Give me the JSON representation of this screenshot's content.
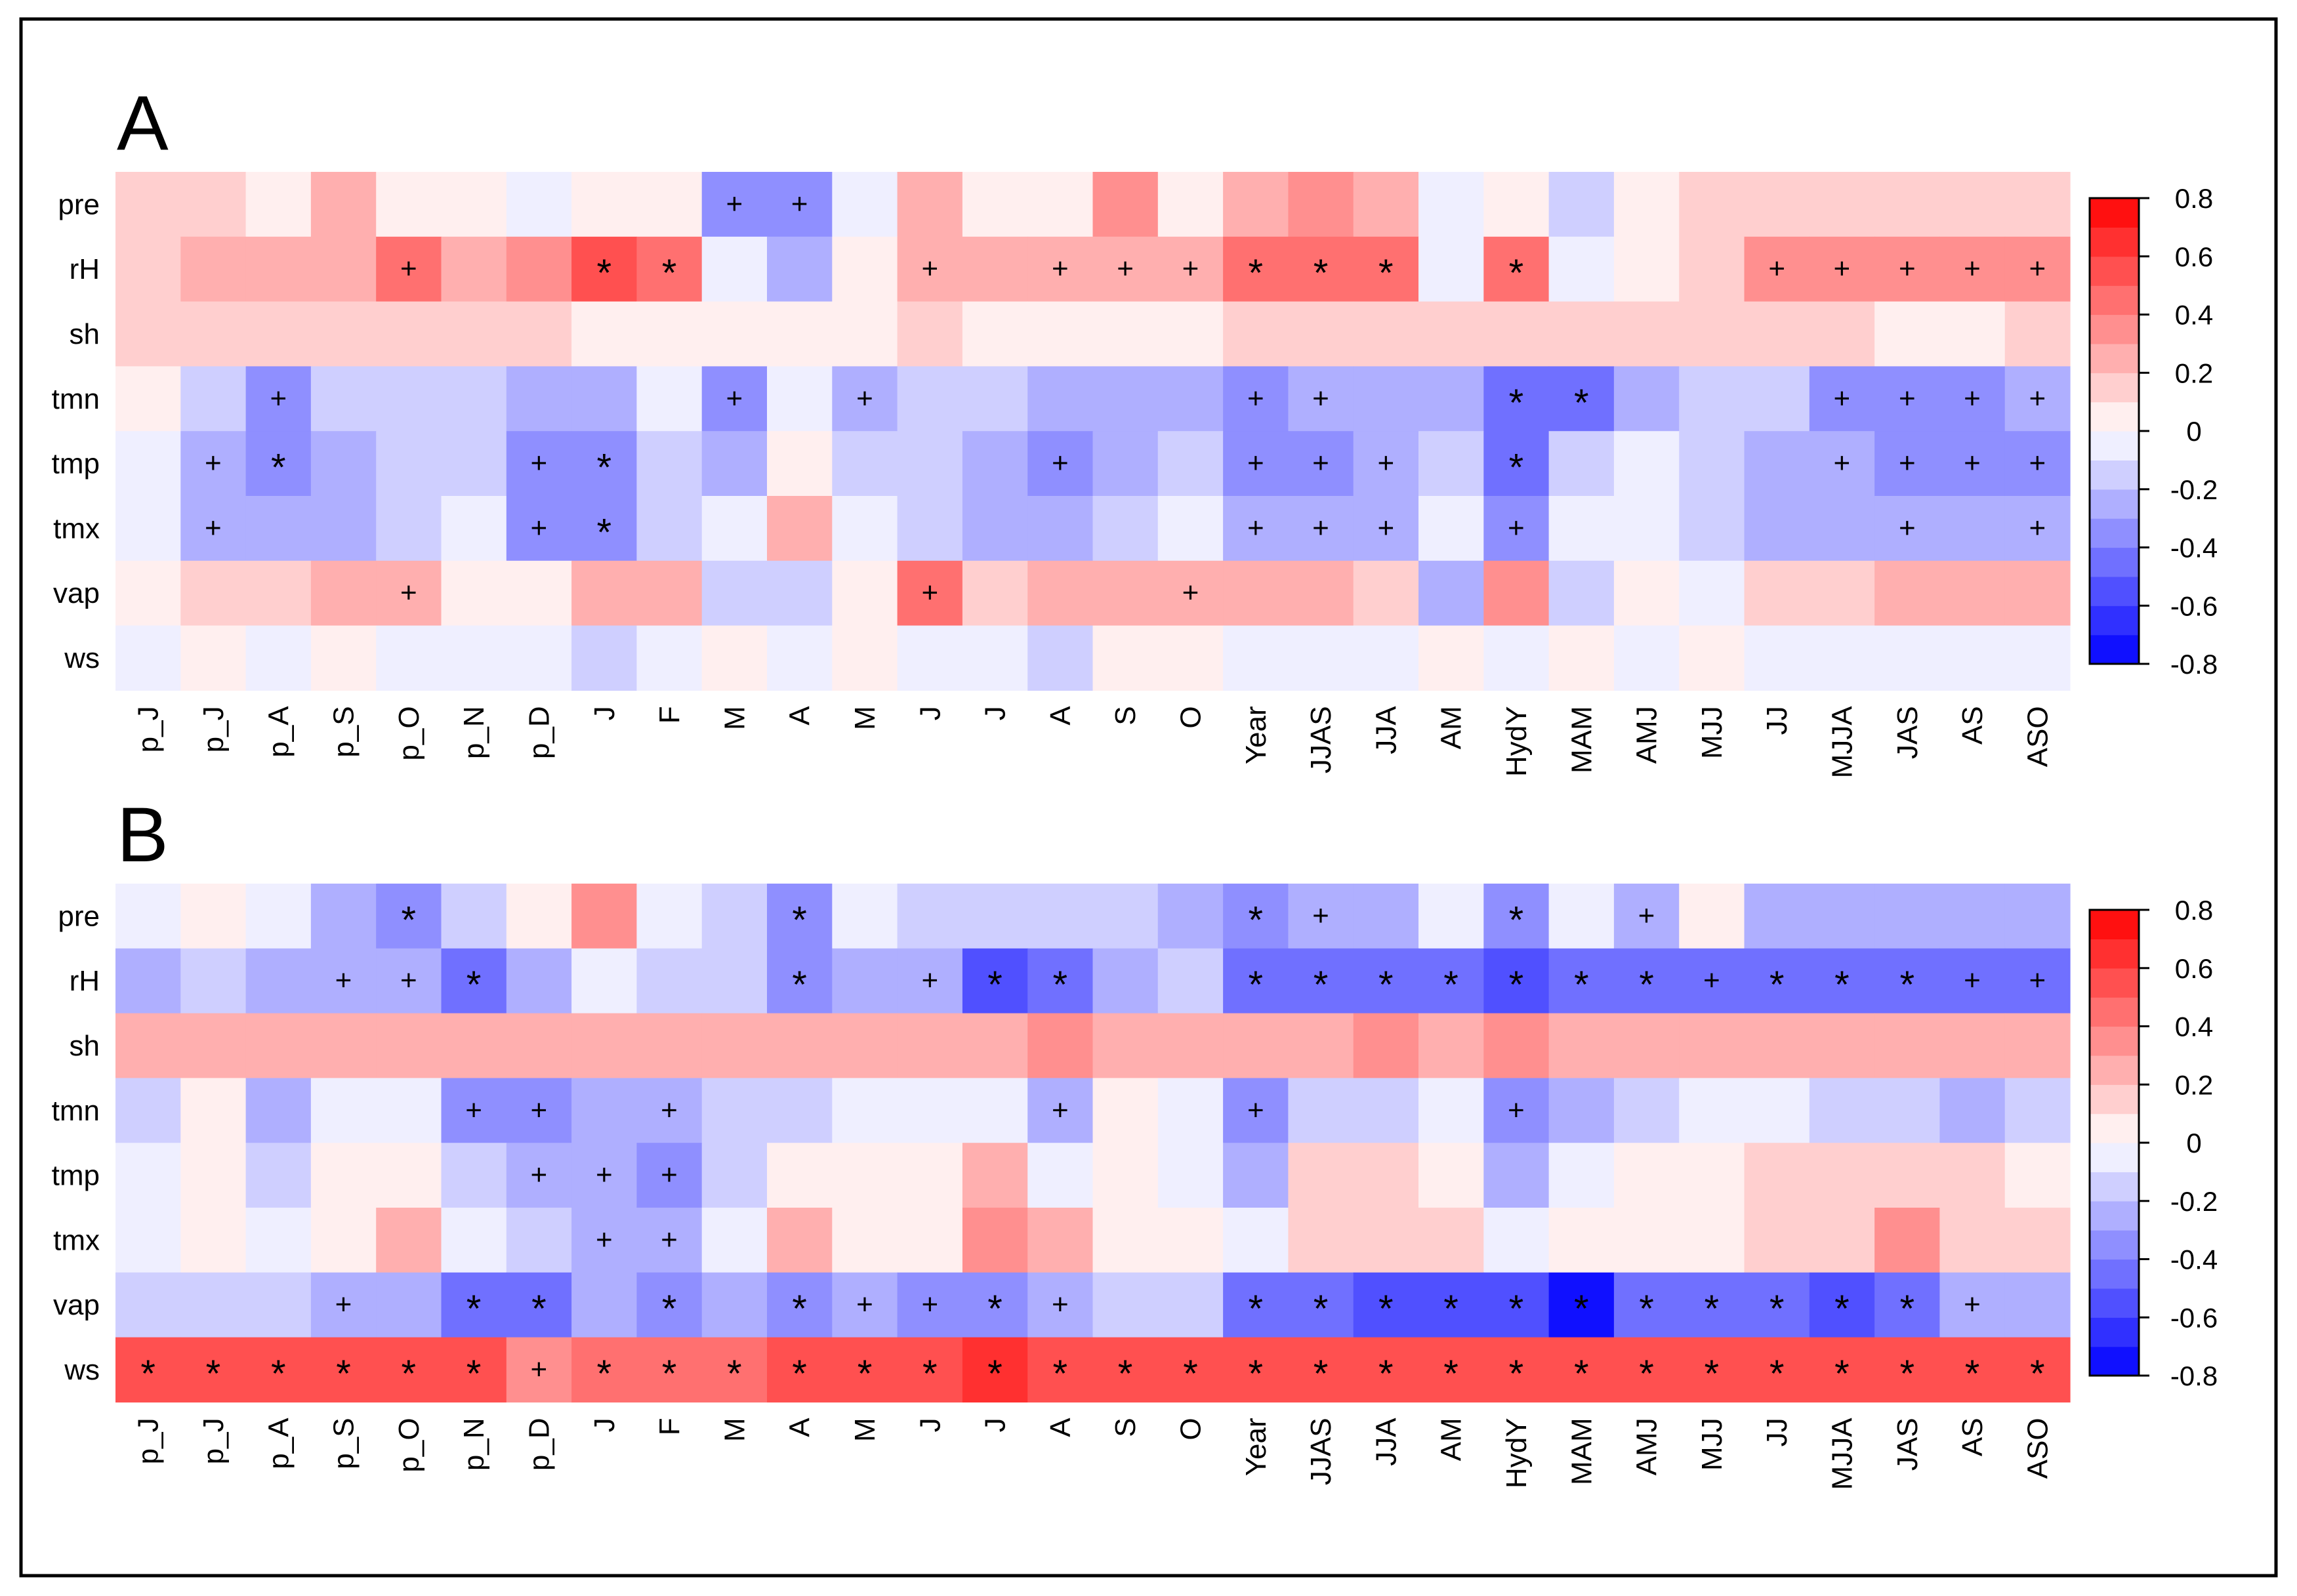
{
  "chart_data": [
    {
      "type": "heatmap",
      "panel_label": "A",
      "rows": [
        "pre",
        "rH",
        "sh",
        "tmn",
        "tmp",
        "tmx",
        "vap",
        "ws"
      ],
      "columns": [
        "p_J",
        "p_J",
        "p_A",
        "p_S",
        "p_O",
        "p_N",
        "p_D",
        "J",
        "F",
        "M",
        "A",
        "M",
        "J",
        "J",
        "A",
        "S",
        "O",
        "Year",
        "JJAS",
        "JJA",
        "AM",
        "HydY",
        "MAM",
        "AMJ",
        "MJJ",
        "JJ",
        "MJJA",
        "JAS",
        "AS",
        "ASO"
      ],
      "values": [
        [
          0.15,
          0.15,
          0.05,
          0.2,
          0.05,
          0.05,
          -0.05,
          0.05,
          0.05,
          -0.4,
          -0.4,
          -0.05,
          0.2,
          0.05,
          0.05,
          0.3,
          0.05,
          0.25,
          0.3,
          0.2,
          -0.05,
          0.05,
          -0.15,
          0.05,
          0.15,
          0.15,
          0.15,
          0.15,
          0.15,
          0.15
        ],
        [
          0.15,
          0.25,
          0.25,
          0.25,
          0.4,
          0.2,
          0.3,
          0.5,
          0.4,
          -0.05,
          -0.25,
          0.05,
          0.25,
          0.25,
          0.25,
          0.25,
          0.25,
          0.4,
          0.4,
          0.4,
          -0.05,
          0.4,
          -0.05,
          0.05,
          0.15,
          0.35,
          0.35,
          0.35,
          0.35,
          0.35
        ],
        [
          0.15,
          0.15,
          0.15,
          0.15,
          0.15,
          0.15,
          0.15,
          0.05,
          0.05,
          0.05,
          0.05,
          0.05,
          0.15,
          0.05,
          0.05,
          0.05,
          0.05,
          0.15,
          0.15,
          0.15,
          0.15,
          0.15,
          0.15,
          0.15,
          0.15,
          0.15,
          0.15,
          0.05,
          0.05,
          0.15
        ],
        [
          0.05,
          -0.2,
          -0.4,
          -0.15,
          -0.15,
          -0.15,
          -0.25,
          -0.25,
          -0.05,
          -0.35,
          -0.05,
          -0.25,
          -0.15,
          -0.15,
          -0.25,
          -0.25,
          -0.25,
          -0.35,
          -0.25,
          -0.25,
          -0.25,
          -0.45,
          -0.45,
          -0.25,
          -0.15,
          -0.15,
          -0.35,
          -0.35,
          -0.35,
          -0.25
        ],
        [
          -0.05,
          -0.25,
          -0.4,
          -0.25,
          -0.15,
          -0.15,
          -0.4,
          -0.4,
          -0.15,
          -0.25,
          0.05,
          -0.15,
          -0.15,
          -0.25,
          -0.35,
          -0.25,
          -0.15,
          -0.35,
          -0.35,
          -0.25,
          -0.15,
          -0.45,
          -0.15,
          -0.05,
          -0.15,
          -0.25,
          -0.25,
          -0.35,
          -0.35,
          -0.35
        ],
        [
          -0.05,
          -0.25,
          -0.25,
          -0.25,
          -0.15,
          -0.05,
          -0.4,
          -0.4,
          -0.15,
          -0.05,
          0.2,
          -0.05,
          -0.15,
          -0.25,
          -0.25,
          -0.15,
          -0.05,
          -0.25,
          -0.25,
          -0.25,
          -0.05,
          -0.4,
          -0.05,
          -0.05,
          -0.15,
          -0.25,
          -0.25,
          -0.25,
          -0.25,
          -0.25
        ],
        [
          0.05,
          0.15,
          0.15,
          0.25,
          0.25,
          0.05,
          0.05,
          0.25,
          0.25,
          -0.15,
          -0.15,
          0.05,
          0.4,
          0.15,
          0.25,
          0.25,
          0.25,
          0.25,
          0.25,
          0.15,
          -0.25,
          0.3,
          -0.15,
          0.05,
          -0.05,
          0.15,
          0.15,
          0.25,
          0.25,
          0.2
        ],
        [
          -0.05,
          0.05,
          -0.05,
          0.05,
          -0.05,
          -0.05,
          -0.05,
          -0.15,
          -0.05,
          0.05,
          -0.05,
          0.05,
          -0.05,
          -0.05,
          -0.15,
          0.05,
          0.05,
          -0.05,
          -0.05,
          -0.05,
          0.05,
          -0.05,
          0.05,
          -0.05,
          0.05,
          -0.05,
          -0.05,
          -0.05,
          -0.05,
          -0.05
        ]
      ],
      "significance": [
        [
          "",
          "",
          "",
          "",
          "",
          "",
          "",
          "",
          "",
          "+",
          "+",
          "",
          "",
          "",
          "",
          "",
          "",
          "",
          "",
          "",
          "",
          "",
          "",
          "",
          "",
          "",
          "",
          "",
          "",
          ""
        ],
        [
          "",
          "",
          "",
          "",
          "+",
          "",
          "",
          "*",
          "*",
          "",
          "",
          "",
          "+",
          "",
          "+",
          "+",
          "+",
          "*",
          "*",
          "*",
          "",
          "*",
          "",
          "",
          "",
          "+",
          "+",
          "+",
          "+",
          "+"
        ],
        [
          "",
          "",
          "",
          "",
          "",
          "",
          "",
          "",
          "",
          "",
          "",
          "",
          "",
          "",
          "",
          "",
          "",
          "",
          "",
          "",
          "",
          "",
          "",
          "",
          "",
          "",
          "",
          "",
          "",
          ""
        ],
        [
          "",
          "",
          "+",
          "",
          "",
          "",
          "",
          "",
          "",
          "+",
          "",
          "+",
          "",
          "",
          "",
          "",
          "",
          "+",
          "+",
          "",
          "",
          "*",
          "*",
          "",
          "",
          "",
          "+",
          "+",
          "+",
          "+"
        ],
        [
          "",
          "+",
          "*",
          "",
          "",
          "",
          "+",
          "*",
          "",
          "",
          "",
          "",
          "",
          "",
          "+",
          "",
          "",
          "+",
          "+",
          "+",
          "",
          "*",
          "",
          "",
          "",
          "",
          "+",
          "+",
          "+",
          "+"
        ],
        [
          "",
          "+",
          "",
          "",
          "",
          "",
          "+",
          "*",
          "",
          "",
          "",
          "",
          "",
          "",
          "",
          "",
          "",
          "+",
          "+",
          "+",
          "",
          "+",
          "",
          "",
          "",
          "",
          "",
          "+",
          "",
          "+"
        ],
        [
          "",
          "",
          "",
          "",
          "+",
          "",
          "",
          "",
          "",
          "",
          "",
          "",
          "+",
          "",
          "",
          "",
          "+",
          "",
          "",
          "",
          "",
          "",
          "",
          "",
          "",
          "",
          "",
          "",
          "",
          ""
        ],
        [
          "",
          "",
          "",
          "",
          "",
          "",
          "",
          "",
          "",
          "",
          "",
          "",
          "",
          "",
          "",
          "",
          "",
          "",
          "",
          "",
          "",
          "",
          "",
          "",
          "",
          "",
          "",
          "",
          "",
          ""
        ]
      ]
    },
    {
      "type": "heatmap",
      "panel_label": "B",
      "rows": [
        "pre",
        "rH",
        "sh",
        "tmn",
        "tmp",
        "tmx",
        "vap",
        "ws"
      ],
      "columns": [
        "p_J",
        "p_J",
        "p_A",
        "p_S",
        "p_O",
        "p_N",
        "p_D",
        "J",
        "F",
        "M",
        "A",
        "M",
        "J",
        "J",
        "A",
        "S",
        "O",
        "Year",
        "JJAS",
        "JJA",
        "AM",
        "HydY",
        "MAM",
        "AMJ",
        "MJJ",
        "JJ",
        "MJJA",
        "JAS",
        "AS",
        "ASO"
      ],
      "values": [
        [
          -0.05,
          0.05,
          -0.05,
          -0.25,
          -0.35,
          -0.2,
          0.05,
          0.3,
          -0.05,
          -0.15,
          -0.35,
          -0.05,
          -0.15,
          -0.15,
          -0.15,
          -0.15,
          -0.25,
          -0.35,
          -0.25,
          -0.25,
          -0.05,
          -0.35,
          -0.05,
          -0.25,
          0.05,
          -0.25,
          -0.25,
          -0.25,
          -0.25,
          -0.25
        ],
        [
          -0.25,
          -0.15,
          -0.25,
          -0.25,
          -0.25,
          -0.45,
          -0.25,
          -0.05,
          -0.15,
          -0.15,
          -0.35,
          -0.25,
          -0.25,
          -0.55,
          -0.45,
          -0.25,
          -0.15,
          -0.5,
          -0.5,
          -0.5,
          -0.5,
          -0.6,
          -0.5,
          -0.5,
          -0.45,
          -0.5,
          -0.5,
          -0.5,
          -0.45,
          -0.45
        ],
        [
          0.2,
          0.2,
          0.2,
          0.2,
          0.2,
          0.2,
          0.2,
          0.2,
          0.2,
          0.2,
          0.2,
          0.2,
          0.2,
          0.2,
          0.3,
          0.2,
          0.2,
          0.2,
          0.2,
          0.3,
          0.2,
          0.3,
          0.2,
          0.2,
          0.2,
          0.2,
          0.2,
          0.2,
          0.2,
          0.2
        ],
        [
          -0.15,
          0.05,
          -0.25,
          -0.05,
          -0.05,
          -0.35,
          -0.35,
          -0.25,
          -0.25,
          -0.15,
          -0.15,
          -0.05,
          -0.05,
          -0.05,
          -0.25,
          0.05,
          -0.05,
          -0.35,
          -0.15,
          -0.15,
          -0.05,
          -0.35,
          -0.25,
          -0.15,
          -0.05,
          -0.05,
          -0.15,
          -0.15,
          -0.25,
          -0.15
        ],
        [
          -0.05,
          0.05,
          -0.15,
          0.05,
          0.05,
          -0.15,
          -0.25,
          -0.25,
          -0.35,
          -0.15,
          0.05,
          0.05,
          0.05,
          0.2,
          -0.05,
          0.05,
          -0.05,
          -0.25,
          0.15,
          0.15,
          0.05,
          -0.25,
          -0.05,
          0.05,
          0.05,
          0.15,
          0.15,
          0.15,
          0.15,
          0.05
        ],
        [
          -0.05,
          0.05,
          -0.05,
          0.05,
          0.2,
          -0.05,
          -0.15,
          -0.25,
          -0.25,
          -0.05,
          0.2,
          0.05,
          0.05,
          0.3,
          0.2,
          0.05,
          0.05,
          -0.05,
          0.15,
          0.15,
          0.15,
          -0.05,
          0.05,
          0.05,
          0.05,
          0.15,
          0.15,
          0.3,
          0.15,
          0.15
        ],
        [
          -0.15,
          -0.15,
          -0.15,
          -0.25,
          -0.25,
          -0.5,
          -0.5,
          -0.25,
          -0.35,
          -0.25,
          -0.35,
          -0.25,
          -0.35,
          -0.35,
          -0.25,
          -0.15,
          -0.15,
          -0.5,
          -0.45,
          -0.55,
          -0.6,
          -0.6,
          -0.75,
          -0.45,
          -0.45,
          -0.45,
          -0.55,
          -0.45,
          -0.25,
          -0.25
        ],
        [
          0.55,
          0.55,
          0.5,
          0.6,
          0.55,
          0.5,
          0.3,
          0.45,
          0.45,
          0.45,
          0.5,
          0.55,
          0.55,
          0.65,
          0.55,
          0.55,
          0.55,
          0.55,
          0.6,
          0.6,
          0.55,
          0.55,
          0.55,
          0.55,
          0.55,
          0.6,
          0.6,
          0.6,
          0.55,
          0.55
        ]
      ],
      "significance": [
        [
          "",
          "",
          "",
          "",
          "*",
          "",
          "",
          "",
          "",
          "",
          "*",
          "",
          "",
          "",
          "",
          "",
          "",
          "*",
          "+",
          "",
          "",
          "*",
          "",
          "+",
          "",
          "",
          "",
          "",
          "",
          ""
        ],
        [
          "",
          "",
          "",
          "+",
          "+",
          "*",
          "",
          "",
          "",
          "",
          "*",
          "",
          "+",
          "*",
          "*",
          "",
          "",
          "*",
          "*",
          "*",
          "*",
          "*",
          "*",
          "*",
          "+",
          "*",
          "*",
          "*",
          "+",
          "+"
        ],
        [
          "",
          "",
          "",
          "",
          "",
          "",
          "",
          "",
          "",
          "",
          "",
          "",
          "",
          "",
          "",
          "",
          "",
          "",
          "",
          "",
          "",
          "",
          "",
          "",
          "",
          "",
          "",
          "",
          "",
          ""
        ],
        [
          "",
          "",
          "",
          "",
          "",
          "+",
          "+",
          "",
          "+",
          "",
          "",
          "",
          "",
          "",
          "+",
          "",
          "",
          "+",
          "",
          "",
          "",
          "+",
          "",
          "",
          "",
          "",
          "",
          "",
          "",
          ""
        ],
        [
          "",
          "",
          "",
          "",
          "",
          "",
          "+",
          "+",
          "+",
          "",
          "",
          "",
          "",
          "",
          "",
          "",
          "",
          "",
          "",
          "",
          "",
          "",
          "",
          "",
          "",
          "",
          "",
          "",
          "",
          ""
        ],
        [
          "",
          "",
          "",
          "",
          "",
          "",
          "",
          "+",
          "+",
          "",
          "",
          "",
          "",
          "",
          "",
          "",
          "",
          "",
          "",
          "",
          "",
          "",
          "",
          "",
          "",
          "",
          "",
          "",
          "",
          ""
        ],
        [
          "",
          "",
          "",
          "+",
          "",
          "*",
          "*",
          "",
          "*",
          "",
          "*",
          "+",
          "+",
          "*",
          "+",
          "",
          "",
          "*",
          "*",
          "*",
          "*",
          "*",
          "*",
          "*",
          "*",
          "*",
          "*",
          "*",
          "+",
          ""
        ],
        [
          "*",
          "*",
          "*",
          "*",
          "*",
          "*",
          "+",
          "*",
          "*",
          "*",
          "*",
          "*",
          "*",
          "*",
          "*",
          "*",
          "*",
          "*",
          "*",
          "*",
          "*",
          "*",
          "*",
          "*",
          "*",
          "*",
          "*",
          "*",
          "*",
          "*"
        ]
      ]
    }
  ],
  "colorbar": {
    "ticks": [
      "0.8",
      "0.6",
      "0.4",
      "0.2",
      "0",
      "-0.2",
      "-0.4",
      "-0.6",
      "-0.8"
    ],
    "tick_values": [
      0.8,
      0.6,
      0.4,
      0.2,
      0,
      -0.2,
      -0.4,
      -0.6,
      -0.8
    ],
    "range": [
      -0.8,
      0.8
    ],
    "levels": 16,
    "low_color": "#0000ff",
    "mid_color": "#ffffff",
    "high_color": "#ff0000"
  }
}
